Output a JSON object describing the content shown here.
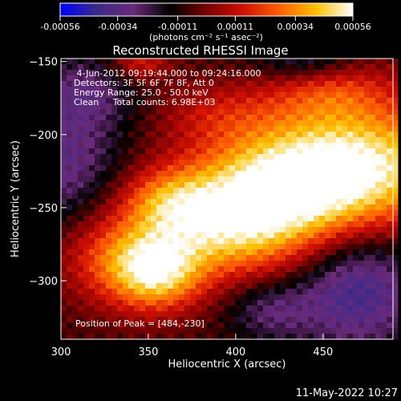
{
  "colorbar": {
    "ticks": [
      "-0.00056",
      "-0.00034",
      "-0.00011",
      "0.00011",
      "0.00034",
      "0.00056"
    ],
    "range": [
      -0.00056,
      0.00056
    ],
    "unit_label": "(photons cm⁻² s⁻¹ asec⁻²)",
    "colormap": [
      "#0000ff",
      "#3a2a8a",
      "#6a2a7a",
      "#000000",
      "#7a0000",
      "#d01000",
      "#ff6000",
      "#ffc000",
      "#ffffff"
    ]
  },
  "chart_data": {
    "type": "heatmap",
    "title": "Reconstructed RHESSI Image",
    "xlabel": "Heliocentric X (arcsec)",
    "ylabel": "Heliocentric Y (arcsec)",
    "xlim": [
      300,
      490
    ],
    "ylim": [
      -340,
      -148
    ],
    "xticks": [
      300,
      350,
      400,
      450
    ],
    "yticks": [
      -150,
      -200,
      -250,
      -300
    ],
    "peak": {
      "x": 484,
      "y": -230
    },
    "sources": [
      {
        "x": 470,
        "y": -220,
        "sx": 45,
        "sy": 30,
        "amp": 0.95
      },
      {
        "x": 425,
        "y": -240,
        "sx": 40,
        "sy": 28,
        "amp": 0.75
      },
      {
        "x": 390,
        "y": -265,
        "sx": 35,
        "sy": 25,
        "amp": 0.7
      },
      {
        "x": 355,
        "y": -295,
        "sx": 18,
        "sy": 18,
        "amp": 0.8
      },
      {
        "x": 330,
        "y": -285,
        "sx": 22,
        "sy": 22,
        "amp": 0.45
      },
      {
        "x": 360,
        "y": -245,
        "sx": 18,
        "sy": 15,
        "amp": 0.4
      },
      {
        "x": 345,
        "y": -150,
        "sx": 12,
        "sy": 10,
        "amp": 0.4
      },
      {
        "x": 455,
        "y": -170,
        "sx": 25,
        "sy": 15,
        "amp": 0.35
      },
      {
        "x": 390,
        "y": -185,
        "sx": 25,
        "sy": 15,
        "amp": 0.25
      }
    ],
    "negative_regions": [
      {
        "x": 470,
        "y": -305,
        "sx": 25,
        "sy": 30,
        "amp": -0.6
      },
      {
        "x": 300,
        "y": -220,
        "sx": 25,
        "sy": 30,
        "amp": -0.45
      },
      {
        "x": 315,
        "y": -170,
        "sx": 20,
        "sy": 18,
        "amp": -0.35
      },
      {
        "x": 420,
        "y": -320,
        "sx": 18,
        "sy": 15,
        "amp": -0.35
      },
      {
        "x": 440,
        "y": -150,
        "sx": 20,
        "sy": 10,
        "amp": -0.35
      }
    ],
    "info_lines": [
      " 4-Jun-2012 09:19:44.000 to 09:24:16.000",
      "Detectors: 3F 5F 6F 7F 8F, Att 0",
      "Energy Range: 25.0 - 50.0 keV",
      "Clean     Total counts: 6.98E+03"
    ],
    "peak_label": "Position of Peak = [484,-230]"
  },
  "timestamp": "11-May-2022 10:27"
}
